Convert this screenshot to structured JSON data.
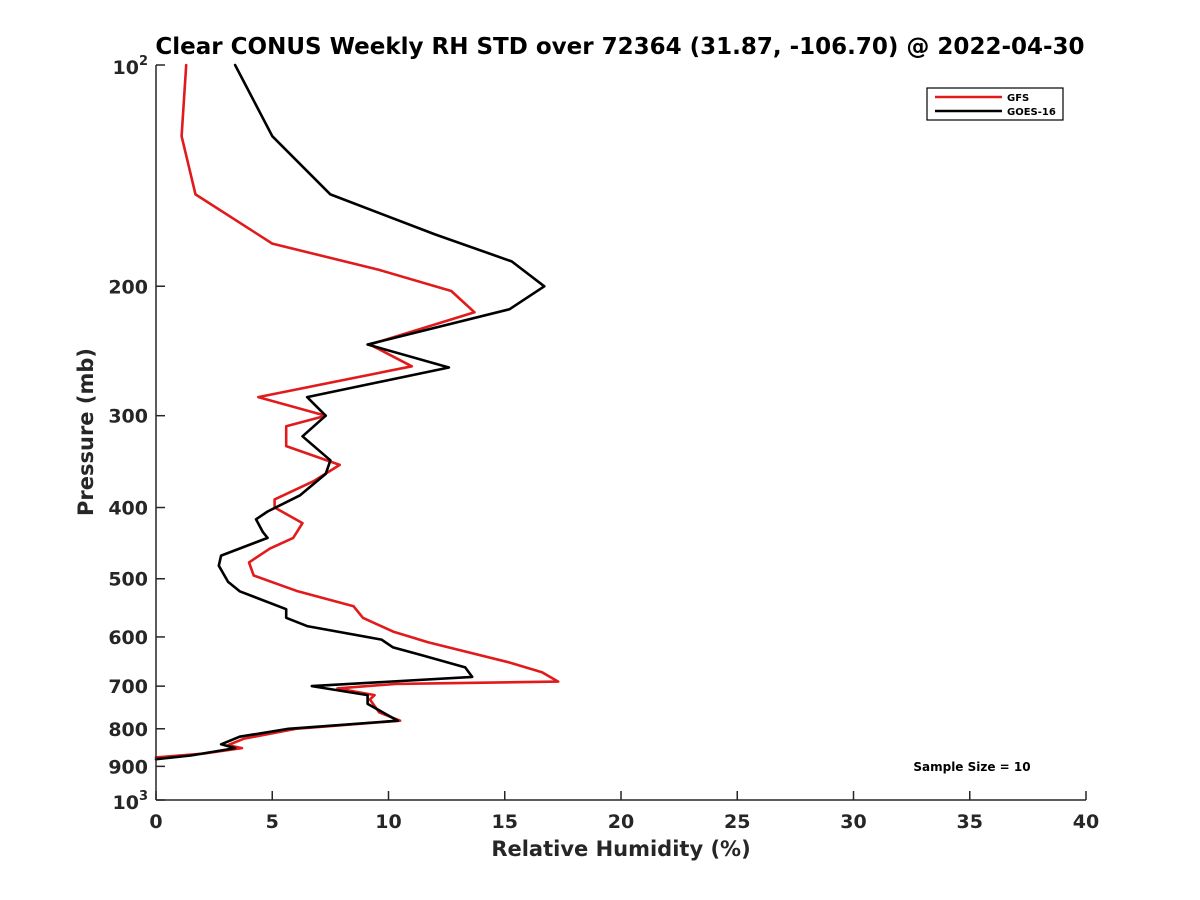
{
  "chart_data": {
    "type": "line",
    "title": "Clear CONUS Weekly RH STD over 72364 (31.87, -106.70) @ 2022-04-30",
    "xlabel": "Relative Humidity (%)",
    "ylabel": "Pressure (mb)",
    "xlim": [
      0,
      40
    ],
    "ylim": [
      100,
      1000
    ],
    "y_scale": "log",
    "y_reversed": true,
    "xticks": [
      0,
      5,
      10,
      15,
      20,
      25,
      30,
      35,
      40
    ],
    "xtick_labels": [
      "0",
      "5",
      "10",
      "15",
      "20",
      "25",
      "30",
      "35",
      "40"
    ],
    "yticks": [
      200,
      300,
      400,
      500,
      600,
      700,
      800,
      900
    ],
    "ytick_labels": [
      "200",
      "300",
      "400",
      "500",
      "600",
      "700",
      "800",
      "900"
    ],
    "ytick_end_top": {
      "base": "10",
      "exp": "2"
    },
    "ytick_end_bottom": {
      "base": "10",
      "exp": "3"
    },
    "grid": false,
    "legend_position": "top-right",
    "annotation": "Sample Size = 10",
    "series": [
      {
        "name": "GFS",
        "color": "#e11b1b",
        "points": [
          [
            1.3,
            100
          ],
          [
            1.1,
            125
          ],
          [
            1.7,
            150
          ],
          [
            5.0,
            175
          ],
          [
            9.6,
            190
          ],
          [
            12.7,
            203
          ],
          [
            13.7,
            217
          ],
          [
            9.2,
            240
          ],
          [
            11.0,
            257
          ],
          [
            4.4,
            283
          ],
          [
            7.3,
            300
          ],
          [
            5.6,
            310
          ],
          [
            5.6,
            330
          ],
          [
            7.9,
            350
          ],
          [
            6.8,
            368
          ],
          [
            5.1,
            390
          ],
          [
            5.1,
            400
          ],
          [
            6.3,
            420
          ],
          [
            5.9,
            440
          ],
          [
            4.9,
            455
          ],
          [
            4.0,
            475
          ],
          [
            4.2,
            495
          ],
          [
            6.1,
            520
          ],
          [
            8.5,
            545
          ],
          [
            8.9,
            565
          ],
          [
            10.2,
            590
          ],
          [
            11.7,
            610
          ],
          [
            15.2,
            650
          ],
          [
            16.6,
            670
          ],
          [
            17.3,
            690
          ],
          [
            10.3,
            695
          ],
          [
            7.8,
            705
          ],
          [
            9.4,
            720
          ],
          [
            9.2,
            730
          ],
          [
            9.6,
            760
          ],
          [
            10.5,
            780
          ],
          [
            6.0,
            800
          ],
          [
            3.8,
            825
          ],
          [
            3.1,
            842
          ],
          [
            3.7,
            850
          ],
          [
            2.0,
            865
          ],
          [
            0,
            875
          ]
        ]
      },
      {
        "name": "GOES-16",
        "color": "#000000",
        "points": [
          [
            3.4,
            100
          ],
          [
            5.0,
            125
          ],
          [
            7.5,
            150
          ],
          [
            12.0,
            170
          ],
          [
            15.3,
            185
          ],
          [
            16.7,
            200
          ],
          [
            15.2,
            215
          ],
          [
            9.1,
            240
          ],
          [
            12.6,
            258
          ],
          [
            6.5,
            283
          ],
          [
            7.3,
            300
          ],
          [
            6.3,
            320
          ],
          [
            7.5,
            345
          ],
          [
            7.3,
            360
          ],
          [
            6.2,
            385
          ],
          [
            4.8,
            405
          ],
          [
            4.3,
            415
          ],
          [
            4.6,
            432
          ],
          [
            4.8,
            440
          ],
          [
            2.8,
            465
          ],
          [
            2.7,
            480
          ],
          [
            3.1,
            505
          ],
          [
            3.6,
            520
          ],
          [
            5.6,
            550
          ],
          [
            5.6,
            565
          ],
          [
            6.5,
            580
          ],
          [
            9.7,
            605
          ],
          [
            10.2,
            620
          ],
          [
            11.4,
            635
          ],
          [
            13.3,
            660
          ],
          [
            13.6,
            680
          ],
          [
            6.7,
            700
          ],
          [
            9.1,
            720
          ],
          [
            9.1,
            740
          ],
          [
            10.4,
            780
          ],
          [
            5.7,
            800
          ],
          [
            3.6,
            820
          ],
          [
            2.8,
            840
          ],
          [
            3.4,
            850
          ],
          [
            1.5,
            870
          ],
          [
            0,
            880
          ]
        ]
      }
    ]
  }
}
